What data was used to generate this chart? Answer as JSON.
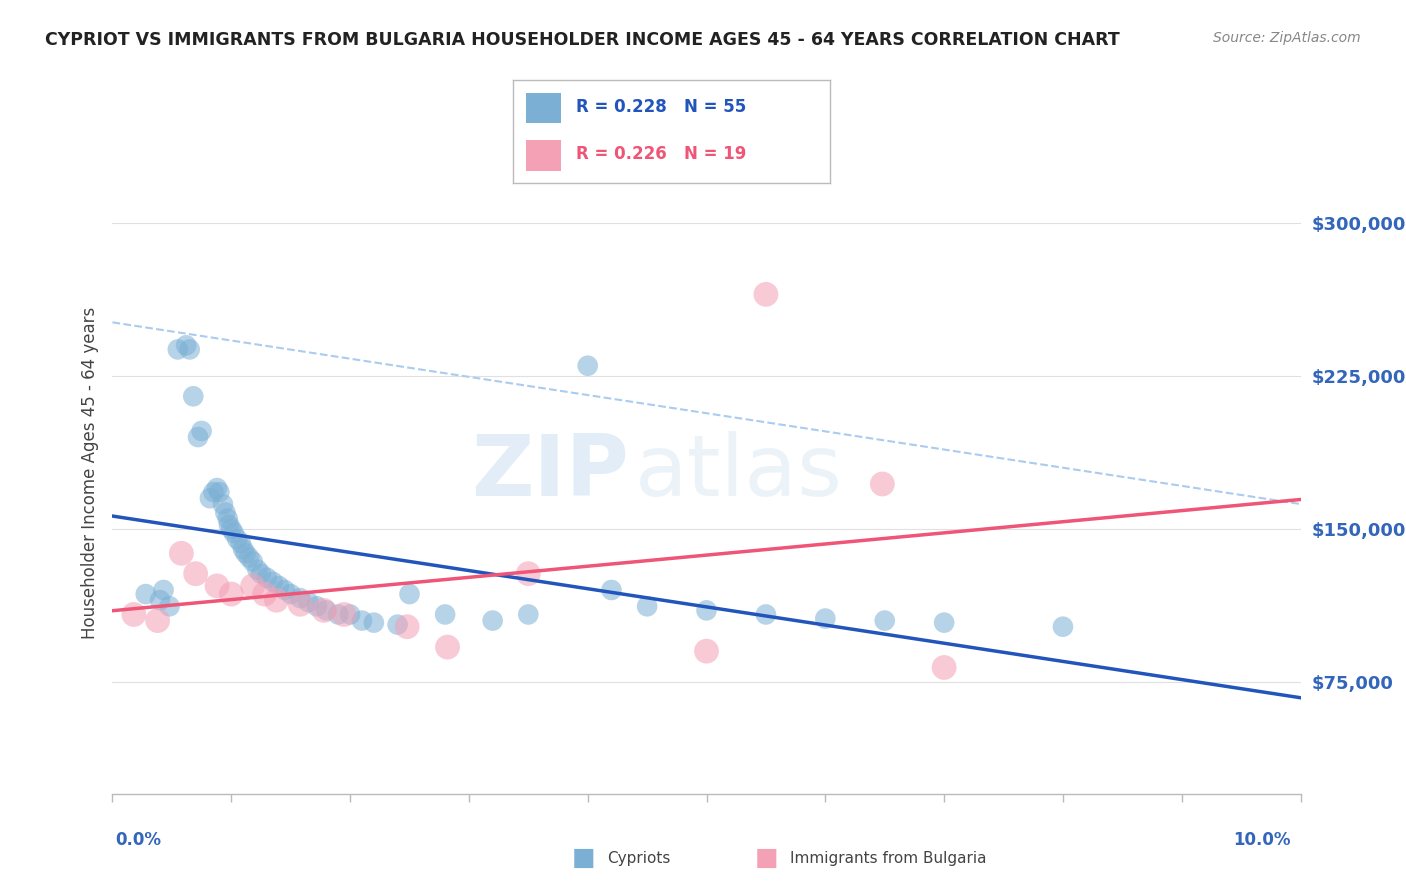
{
  "title": "CYPRIOT VS IMMIGRANTS FROM BULGARIA HOUSEHOLDER INCOME AGES 45 - 64 YEARS CORRELATION CHART",
  "source": "Source: ZipAtlas.com",
  "ylabel": "Householder Income Ages 45 - 64 years",
  "legend_cypriots": "Cypriots",
  "legend_bulgaria": "Immigrants from Bulgaria",
  "cypriot_R": "R = 0.228",
  "cypriot_N": "N = 55",
  "bulgaria_R": "R = 0.226",
  "bulgaria_N": "N = 19",
  "xmin": 0.0,
  "xmax": 10.0,
  "ymin": 20000,
  "ymax": 335000,
  "yticks": [
    75000,
    150000,
    225000,
    300000
  ],
  "ytick_labels": [
    "$75,000",
    "$150,000",
    "$225,000",
    "$300,000"
  ],
  "watermark_zip": "ZIP",
  "watermark_atlas": "atlas",
  "blue_scatter_color": "#7BAFD4",
  "pink_scatter_color": "#F4A0B5",
  "blue_line_color": "#2255BB",
  "pink_line_color": "#EE5577",
  "blue_dash_color": "#AACCEE",
  "bg_color": "#FFFFFF",
  "grid_color": "#E0E0E0",
  "ytick_color": "#3366BB",
  "xtick_color": "#3366BB",
  "cypriot_x": [
    0.28,
    0.4,
    0.43,
    0.48,
    0.55,
    0.62,
    0.65,
    0.68,
    0.72,
    0.75,
    0.82,
    0.85,
    0.88,
    0.9,
    0.93,
    0.95,
    0.97,
    0.98,
    1.0,
    1.02,
    1.05,
    1.08,
    1.1,
    1.12,
    1.15,
    1.18,
    1.22,
    1.25,
    1.3,
    1.35,
    1.4,
    1.45,
    1.5,
    1.58,
    1.65,
    1.72,
    1.8,
    1.9,
    2.0,
    2.1,
    2.2,
    2.4,
    2.5,
    2.8,
    3.2,
    3.5,
    4.0,
    4.2,
    4.5,
    5.0,
    5.5,
    6.0,
    6.5,
    7.0,
    8.0
  ],
  "cypriot_y": [
    118000,
    115000,
    120000,
    112000,
    238000,
    240000,
    238000,
    215000,
    195000,
    198000,
    165000,
    168000,
    170000,
    168000,
    162000,
    158000,
    155000,
    152000,
    150000,
    148000,
    145000,
    143000,
    140000,
    138000,
    136000,
    134000,
    130000,
    128000,
    126000,
    124000,
    122000,
    120000,
    118000,
    116000,
    114000,
    112000,
    110000,
    108000,
    108000,
    105000,
    104000,
    103000,
    118000,
    108000,
    105000,
    108000,
    230000,
    120000,
    112000,
    110000,
    108000,
    106000,
    105000,
    104000,
    102000
  ],
  "bulgaria_x": [
    0.18,
    0.38,
    0.58,
    0.7,
    0.88,
    1.0,
    1.18,
    1.28,
    1.38,
    1.58,
    1.78,
    1.95,
    2.48,
    2.82,
    3.5,
    5.0,
    5.5,
    6.48,
    7.0
  ],
  "bulgaria_y": [
    108000,
    105000,
    138000,
    128000,
    122000,
    118000,
    122000,
    118000,
    115000,
    113000,
    110000,
    108000,
    102000,
    92000,
    128000,
    90000,
    265000,
    172000,
    82000
  ]
}
